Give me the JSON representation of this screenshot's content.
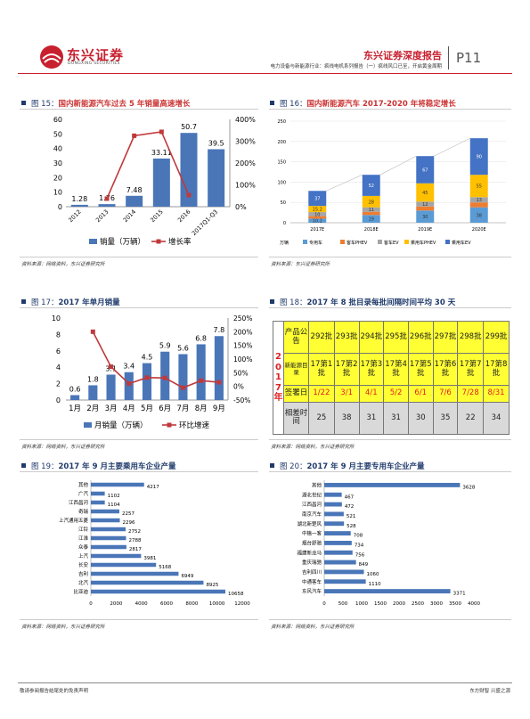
{
  "header": {
    "logo_cn": "东兴证券",
    "logo_en": "DONGXING SECURITIES",
    "report_type": "东兴证券深度报告",
    "subtitle": "电力设备与新能源行业：疯线电机系列报告（一）疯线风口已至，开启黄金周期",
    "page": "P11"
  },
  "colors": {
    "accent": "#c8202f",
    "bar_blue": "#4a76b8",
    "line_red": "#c0393b",
    "table_yellow": "#ffff33",
    "table_gray": "#d9d9d9"
  },
  "fig15": {
    "num": "图 15：",
    "title": "国内新能源汽车过去 5 年销量高速增长",
    "source": "资料来源：网络资料，东兴证券研究所",
    "chart_data": {
      "type": "bar+line",
      "categories": [
        "2012",
        "2013",
        "2014",
        "2015",
        "2016",
        "2017Q1-Q3"
      ],
      "series": [
        {
          "name": "销量（万辆）",
          "type": "bar",
          "values": [
            1.28,
            1.76,
            7.48,
            33.11,
            50.7,
            39.5
          ],
          "labels": [
            "1.28",
            "1.76",
            "7.48",
            "33.11",
            "50.7",
            "39.5"
          ]
        },
        {
          "name": "增长率",
          "type": "line",
          "values": [
            null,
            37,
            325,
            343,
            53,
            null
          ]
        }
      ],
      "y_left_ticks": [
        "0",
        "10",
        "20",
        "30",
        "40",
        "50",
        "60"
      ],
      "y_right_ticks": [
        "0%",
        "100%",
        "200%",
        "300%",
        "400%"
      ],
      "ylim_left": [
        0,
        60
      ],
      "ylim_right": [
        0,
        400
      ]
    }
  },
  "fig16": {
    "num": "图 16：",
    "title": "国内新能源汽车 2017-2020 年将稳定增长",
    "source": "资料来源：东兴证券研究所",
    "chart_data": {
      "type": "stacked-bar",
      "categories": [
        "2017E",
        "2018E",
        "2019E",
        "2020E"
      ],
      "unit": "万辆",
      "y_ticks": [
        "0",
        "50",
        "100",
        "150",
        "200",
        "250"
      ],
      "ylim": [
        0,
        250
      ],
      "series": [
        {
          "name": "专用车",
          "values": [
            10.2,
            19,
            30,
            38
          ]
        },
        {
          "name": "客车PHEV",
          "values": [
            6,
            8,
            10,
            12
          ]
        },
        {
          "name": "客车EV",
          "values": [
            10,
            11,
            12,
            13
          ]
        },
        {
          "name": "乘用车PHEV",
          "values": [
            15.2,
            28,
            45,
            55
          ]
        },
        {
          "name": "乘用车EV",
          "values": [
            37,
            52,
            67,
            90
          ]
        }
      ],
      "labels": [
        [
          "10.2",
          "",
          "10",
          "15.2",
          "37"
        ],
        [
          "19",
          "",
          "11",
          "28",
          "52"
        ],
        [
          "30",
          "",
          "12",
          "45",
          "67"
        ],
        [
          "38",
          "",
          "13",
          "55",
          "90"
        ]
      ]
    }
  },
  "fig17": {
    "num": "图 17：",
    "title": "2017 年单月销量",
    "source": "资料来源：网络资料，东兴证券研究所",
    "chart_data": {
      "type": "bar+line",
      "categories": [
        "1月",
        "2月",
        "3月",
        "4月",
        "5月",
        "6月",
        "7月",
        "8月",
        "9月"
      ],
      "series": [
        {
          "name": "月销量（万辆）",
          "type": "bar",
          "values": [
            0.6,
            1.8,
            3.1,
            3.4,
            4.5,
            5.9,
            5.6,
            6.8,
            7.8
          ],
          "labels": [
            "0.6",
            "1.8",
            "3.1",
            "3.4",
            "4.5",
            "5.9",
            "5.6",
            "6.8",
            "7.8"
          ]
        },
        {
          "name": "环比增速",
          "type": "line",
          "values": [
            null,
            200,
            72,
            10,
            32,
            31,
            -5,
            21,
            15
          ]
        }
      ],
      "y_left_ticks": [
        "0",
        "2",
        "4",
        "6",
        "8",
        "10"
      ],
      "y_right_ticks": [
        "-50%",
        "0%",
        "50%",
        "100%",
        "150%",
        "200%",
        "250%"
      ],
      "ylim_left": [
        0,
        10
      ],
      "ylim_right": [
        -50,
        250
      ]
    }
  },
  "fig18": {
    "num": "图 18：",
    "title": "2017 年 8 批目录每批间隔时间平均 30 天",
    "source": "资料来源：网络资料，东兴证券研究所",
    "year_label": [
      "2",
      "0",
      "1",
      "7",
      "年"
    ],
    "rows": [
      {
        "head": "产品公告",
        "cells": [
          "292批",
          "293批",
          "294批",
          "295批",
          "296批",
          "297批",
          "298批",
          "299批"
        ]
      },
      {
        "head": "新能源目录",
        "cells": [
          "17第1批",
          "17第2批",
          "17第3批",
          "17第4批",
          "17第5批",
          "17第6批",
          "17第7批",
          "17第8批"
        ]
      },
      {
        "head": "签署日",
        "cells": [
          "1/22",
          "3/1",
          "4/1",
          "5/2",
          "6/1",
          "7/6",
          "7/28",
          "8/31"
        ]
      },
      {
        "head": "相差时间",
        "cells": [
          "25",
          "38",
          "31",
          "31",
          "30",
          "35",
          "22",
          "34"
        ]
      }
    ]
  },
  "fig19": {
    "num": "图 19：",
    "title": "2017 年 9 月主要乘用车企业产量",
    "source": "资料来源：网络资料，东兴证券研究所",
    "chart_data": {
      "type": "hbar",
      "categories": [
        "其他",
        "广汽",
        "江西昌河",
        "奇瑞",
        "上汽通用五菱",
        "江铃",
        "江淮",
        "众泰",
        "上汽",
        "长安",
        "吉利",
        "北汽",
        "比亚迪"
      ],
      "values": [
        4217,
        1102,
        1104,
        2257,
        2296,
        2752,
        2788,
        2817,
        3981,
        5168,
        6949,
        8925,
        10658
      ],
      "x_ticks": [
        "0",
        "2000",
        "4000",
        "6000",
        "8000",
        "10000",
        "12000"
      ],
      "xlim": [
        0,
        12000
      ]
    }
  },
  "fig20": {
    "num": "图 20：",
    "title": "2017 年 9 月主要专用车企业产量",
    "source": "资料来源：网络资料，东兴证券研究所",
    "chart_data": {
      "type": "hbar",
      "categories": [
        "其他",
        "湖北世纪",
        "江西昌河",
        "南京汽车",
        "湖北新楚风",
        "中植一客",
        "烟台舒驰",
        "福建新龙马",
        "重庆瑞驰",
        "吉利四川",
        "中通客车",
        "东风汽车"
      ],
      "values": [
        3628,
        467,
        472,
        521,
        528,
        708,
        734,
        756,
        849,
        1060,
        1110,
        3371
      ],
      "x_ticks": [
        "0",
        "500",
        "1000",
        "1500",
        "2000",
        "2500",
        "3000",
        "3500",
        "4000"
      ],
      "xlim": [
        0,
        4000
      ]
    }
  },
  "footer": {
    "left": "敬请参阅报告结尾处的免责声明",
    "right": "东方财智 兴盛之源"
  }
}
